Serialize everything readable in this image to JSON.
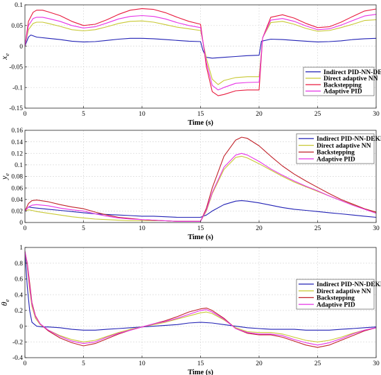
{
  "chart_data": [
    {
      "type": "line",
      "ylabel": "x",
      "ylabel_sub": "e",
      "xlabel": "Time (s)",
      "xlim": [
        0,
        30
      ],
      "ylim": [
        -0.15,
        0.1
      ],
      "xticks": [
        0,
        5,
        10,
        15,
        20,
        25,
        30
      ],
      "yticks": [
        -0.15,
        -0.1,
        -0.05,
        0,
        0.05,
        0.1
      ],
      "ytick_labels": [
        "-0.15",
        "-0.1",
        "-0.05",
        "0",
        "0.05",
        "0.1"
      ],
      "grid": true,
      "legend_position": "bottom-right",
      "series": [
        {
          "name": "Indirect PID-NN-DEKF",
          "color": "#1f1fb4",
          "x": [
            0,
            0.3,
            0.5,
            1,
            2,
            3,
            4,
            5,
            6,
            7,
            8,
            9,
            10,
            11,
            12,
            13,
            14,
            15,
            15.2,
            15.5,
            16,
            17,
            18,
            19,
            20,
            20.2,
            21,
            22,
            23,
            24,
            25,
            26,
            27,
            28,
            29,
            30
          ],
          "y": [
            0,
            0.022,
            0.027,
            0.022,
            0.019,
            0.016,
            0.012,
            0.01,
            0.011,
            0.014,
            0.017,
            0.019,
            0.019,
            0.018,
            0.016,
            0.014,
            0.012,
            0.011,
            -0.01,
            -0.027,
            -0.029,
            -0.027,
            -0.025,
            -0.023,
            -0.022,
            0.012,
            0.017,
            0.016,
            0.014,
            0.012,
            0.01,
            0.011,
            0.013,
            0.016,
            0.018,
            0.019
          ]
        },
        {
          "name": "Direct adaptive NN",
          "color": "#c8c832",
          "x": [
            0,
            0.3,
            0.7,
            1,
            1.5,
            2,
            3,
            4,
            5,
            6,
            7,
            8,
            9,
            10,
            11,
            12,
            13,
            14,
            15,
            15.5,
            16,
            16.5,
            17,
            18,
            19,
            20,
            20.3,
            21,
            22,
            23,
            24,
            25,
            26,
            27,
            28,
            29,
            30
          ],
          "y": [
            0,
            0.04,
            0.055,
            0.058,
            0.058,
            0.055,
            0.048,
            0.04,
            0.037,
            0.04,
            0.047,
            0.055,
            0.06,
            0.061,
            0.058,
            0.052,
            0.046,
            0.042,
            0.038,
            -0.03,
            -0.08,
            -0.093,
            -0.083,
            -0.076,
            -0.074,
            -0.074,
            0.02,
            0.057,
            0.06,
            0.053,
            0.043,
            0.036,
            0.038,
            0.045,
            0.053,
            0.062,
            0.064
          ]
        },
        {
          "name": "Backstepping",
          "color": "#e8183c",
          "x": [
            0,
            0.3,
            0.7,
            1,
            1.5,
            2,
            3,
            4,
            5,
            6,
            7,
            8,
            9,
            10,
            11,
            12,
            13,
            14,
            15,
            15.5,
            16,
            16.5,
            17,
            18,
            19,
            20,
            20.3,
            21,
            22,
            23,
            24,
            25,
            26,
            27,
            28,
            29,
            30
          ],
          "y": [
            0,
            0.06,
            0.082,
            0.087,
            0.087,
            0.083,
            0.074,
            0.06,
            0.05,
            0.053,
            0.064,
            0.077,
            0.087,
            0.091,
            0.089,
            0.081,
            0.07,
            0.06,
            0.053,
            -0.05,
            -0.11,
            -0.12,
            -0.117,
            -0.108,
            -0.106,
            -0.106,
            0.02,
            0.07,
            0.076,
            0.068,
            0.055,
            0.045,
            0.047,
            0.058,
            0.072,
            0.085,
            0.09
          ]
        },
        {
          "name": "Adaptive PID",
          "color": "#e632e6",
          "x": [
            0,
            0.3,
            0.7,
            1,
            1.5,
            2,
            3,
            4,
            5,
            6,
            7,
            8,
            9,
            10,
            11,
            12,
            13,
            14,
            15,
            15.5,
            16,
            16.5,
            17,
            18,
            19,
            20,
            20.3,
            21,
            22,
            23,
            24,
            25,
            26,
            27,
            28,
            29,
            30
          ],
          "y": [
            0,
            0.05,
            0.067,
            0.07,
            0.07,
            0.067,
            0.06,
            0.05,
            0.044,
            0.047,
            0.056,
            0.066,
            0.072,
            0.074,
            0.072,
            0.066,
            0.057,
            0.05,
            0.045,
            -0.04,
            -0.095,
            -0.106,
            -0.1,
            -0.09,
            -0.088,
            -0.087,
            0.02,
            0.063,
            0.067,
            0.06,
            0.049,
            0.04,
            0.042,
            0.051,
            0.062,
            0.073,
            0.077
          ]
        }
      ]
    },
    {
      "type": "line",
      "ylabel": "y",
      "ylabel_sub": "e",
      "xlabel": "Time (s)",
      "xlim": [
        0,
        30
      ],
      "ylim": [
        0,
        0.16
      ],
      "xticks": [
        0,
        5,
        10,
        15,
        20,
        25,
        30
      ],
      "yticks": [
        0,
        0.02,
        0.04,
        0.06,
        0.08,
        0.1,
        0.12,
        0.14,
        0.16
      ],
      "ytick_labels": [
        "0",
        "0.02",
        "0.04",
        "0.06",
        "0.08",
        "0.1",
        "0.12",
        "0.14",
        "0.16"
      ],
      "grid": true,
      "legend_position": "top-right",
      "series": [
        {
          "name": "Indirect PID-NN-DEKF",
          "color": "#1f1fb4",
          "x": [
            0,
            0.3,
            0.6,
            1,
            2,
            3,
            4,
            5,
            6,
            7,
            8,
            9,
            10,
            11,
            12,
            13,
            14,
            15,
            15.5,
            16,
            17,
            18,
            18.5,
            19,
            20,
            21,
            22,
            23,
            24,
            25,
            26,
            27,
            28,
            29,
            30
          ],
          "y": [
            0.02,
            0.027,
            0.026,
            0.025,
            0.023,
            0.021,
            0.019,
            0.017,
            0.015,
            0.014,
            0.013,
            0.012,
            0.011,
            0.011,
            0.01,
            0.009,
            0.009,
            0.009,
            0.013,
            0.02,
            0.031,
            0.037,
            0.038,
            0.037,
            0.034,
            0.03,
            0.026,
            0.023,
            0.021,
            0.019,
            0.017,
            0.015,
            0.013,
            0.011,
            0.009
          ]
        },
        {
          "name": "Direct adaptive NN",
          "color": "#c8c832",
          "x": [
            0,
            0.3,
            0.6,
            1,
            2,
            3,
            4,
            5,
            6,
            7,
            8,
            9,
            10,
            11,
            12,
            13,
            14,
            15,
            15.5,
            16,
            17,
            18,
            18.5,
            19,
            20,
            21,
            22,
            23,
            24,
            25,
            26,
            27,
            28,
            29,
            30
          ],
          "y": [
            0.02,
            0.022,
            0.021,
            0.019,
            0.016,
            0.013,
            0.01,
            0.008,
            0.006,
            0.005,
            0.004,
            0.003,
            0.003,
            0.003,
            0.003,
            0.002,
            0.002,
            0.002,
            0.02,
            0.05,
            0.092,
            0.113,
            0.115,
            0.112,
            0.102,
            0.091,
            0.08,
            0.07,
            0.062,
            0.054,
            0.046,
            0.038,
            0.031,
            0.024,
            0.017
          ]
        },
        {
          "name": "Backstepping",
          "color": "#c02028",
          "x": [
            0,
            0.3,
            0.6,
            1,
            2,
            3,
            4,
            5,
            6,
            7,
            8,
            9,
            10,
            11,
            12,
            13,
            14,
            15,
            15.5,
            16,
            17,
            18,
            18.5,
            19,
            20,
            21,
            22,
            23,
            24,
            25,
            26,
            27,
            28,
            29,
            30
          ],
          "y": [
            0.02,
            0.033,
            0.038,
            0.039,
            0.036,
            0.031,
            0.027,
            0.024,
            0.018,
            0.013,
            0.009,
            0.007,
            0.005,
            0.004,
            0.003,
            0.002,
            0.002,
            0.002,
            0.025,
            0.06,
            0.115,
            0.143,
            0.148,
            0.146,
            0.133,
            0.115,
            0.098,
            0.084,
            0.072,
            0.061,
            0.05,
            0.04,
            0.032,
            0.024,
            0.018
          ]
        },
        {
          "name": "Adaptive PID",
          "color": "#e632e6",
          "x": [
            0,
            0.3,
            0.6,
            1,
            2,
            3,
            4,
            5,
            6,
            7,
            8,
            9,
            10,
            11,
            12,
            13,
            14,
            15,
            15.5,
            16,
            17,
            18,
            18.5,
            19,
            20,
            21,
            22,
            23,
            24,
            25,
            26,
            27,
            28,
            29,
            30
          ],
          "y": [
            0.02,
            0.027,
            0.03,
            0.031,
            0.029,
            0.025,
            0.022,
            0.02,
            0.015,
            0.011,
            0.008,
            0.006,
            0.005,
            0.004,
            0.003,
            0.002,
            0.002,
            0.002,
            0.022,
            0.052,
            0.096,
            0.117,
            0.12,
            0.117,
            0.106,
            0.093,
            0.082,
            0.072,
            0.063,
            0.055,
            0.046,
            0.038,
            0.03,
            0.023,
            0.016
          ]
        }
      ]
    },
    {
      "type": "line",
      "ylabel": "θ",
      "ylabel_sub": "e",
      "xlabel": "Time (s)",
      "xlim": [
        0,
        30
      ],
      "ylim": [
        -0.4,
        1
      ],
      "xticks": [
        0,
        5,
        10,
        15,
        20,
        25,
        30
      ],
      "yticks": [
        -0.4,
        -0.2,
        0,
        0.2,
        0.4,
        0.6,
        0.8,
        1
      ],
      "ytick_labels": [
        "-0.4",
        "-0.2",
        "0",
        "0.2",
        "0.4",
        "0.6",
        "0.8",
        "1"
      ],
      "grid": true,
      "legend_position": "top-right",
      "series": [
        {
          "name": "Indirect PID-NN-DEKF",
          "color": "#1f1fb4",
          "x": [
            0,
            0.2,
            0.4,
            0.6,
            1,
            1.5,
            2,
            3,
            4,
            5,
            6,
            7,
            8,
            9,
            10,
            11,
            12,
            13,
            14,
            15,
            16,
            17,
            18,
            19,
            20,
            21,
            22,
            23,
            24,
            25,
            26,
            27,
            28,
            29,
            30
          ],
          "y": [
            0.95,
            0.5,
            0.2,
            0.05,
            0.0,
            -0.01,
            -0.01,
            -0.02,
            -0.04,
            -0.05,
            -0.05,
            -0.04,
            -0.03,
            -0.02,
            -0.01,
            0.0,
            0.01,
            0.02,
            0.04,
            0.05,
            0.04,
            0.02,
            0.0,
            -0.02,
            -0.03,
            -0.04,
            -0.04,
            -0.04,
            -0.05,
            -0.05,
            -0.05,
            -0.04,
            -0.03,
            -0.02,
            -0.01
          ]
        },
        {
          "name": "Direct adaptive NN",
          "color": "#c8c832",
          "x": [
            0,
            0.2,
            0.4,
            0.6,
            0.9,
            1.3,
            2,
            3,
            4,
            5,
            6,
            7,
            8,
            9,
            10,
            11,
            12,
            13,
            14,
            15,
            15.5,
            16,
            17,
            18,
            19,
            20,
            21,
            22,
            23,
            24,
            25,
            26,
            27,
            28,
            29,
            30
          ],
          "y": [
            0.95,
            0.75,
            0.45,
            0.25,
            0.1,
            0.02,
            -0.05,
            -0.12,
            -0.17,
            -0.2,
            -0.18,
            -0.13,
            -0.08,
            -0.04,
            -0.01,
            0.02,
            0.05,
            0.09,
            0.13,
            0.17,
            0.18,
            0.16,
            0.08,
            -0.02,
            -0.07,
            -0.08,
            -0.08,
            -0.1,
            -0.14,
            -0.18,
            -0.2,
            -0.18,
            -0.14,
            -0.09,
            -0.05,
            -0.02
          ]
        },
        {
          "name": "Backstepping",
          "color": "#c02028",
          "x": [
            0,
            0.2,
            0.4,
            0.6,
            0.9,
            1.3,
            2,
            3,
            4,
            5,
            6,
            7,
            8,
            9,
            10,
            11,
            12,
            13,
            14,
            15,
            15.5,
            16,
            17,
            18,
            19,
            20,
            21,
            22,
            23,
            24,
            25,
            26,
            27,
            28,
            29,
            30
          ],
          "y": [
            0.95,
            0.8,
            0.55,
            0.3,
            0.13,
            0.03,
            -0.06,
            -0.15,
            -0.21,
            -0.25,
            -0.22,
            -0.16,
            -0.1,
            -0.05,
            -0.01,
            0.03,
            0.07,
            0.12,
            0.18,
            0.22,
            0.23,
            0.2,
            0.1,
            -0.03,
            -0.09,
            -0.11,
            -0.11,
            -0.14,
            -0.19,
            -0.24,
            -0.27,
            -0.24,
            -0.18,
            -0.12,
            -0.06,
            -0.02
          ]
        },
        {
          "name": "Adaptive PID",
          "color": "#e632e6",
          "x": [
            0,
            0.2,
            0.4,
            0.6,
            0.9,
            1.3,
            2,
            3,
            4,
            5,
            6,
            7,
            8,
            9,
            10,
            11,
            12,
            13,
            14,
            15,
            15.5,
            16,
            17,
            18,
            19,
            20,
            21,
            22,
            23,
            24,
            25,
            26,
            27,
            28,
            29,
            30
          ],
          "y": [
            0.95,
            0.78,
            0.5,
            0.28,
            0.12,
            0.03,
            -0.05,
            -0.13,
            -0.19,
            -0.22,
            -0.2,
            -0.14,
            -0.09,
            -0.05,
            -0.01,
            0.03,
            0.06,
            0.1,
            0.15,
            0.2,
            0.21,
            0.18,
            0.09,
            -0.03,
            -0.08,
            -0.1,
            -0.1,
            -0.12,
            -0.17,
            -0.21,
            -0.24,
            -0.21,
            -0.16,
            -0.1,
            -0.05,
            -0.02
          ]
        }
      ]
    }
  ]
}
